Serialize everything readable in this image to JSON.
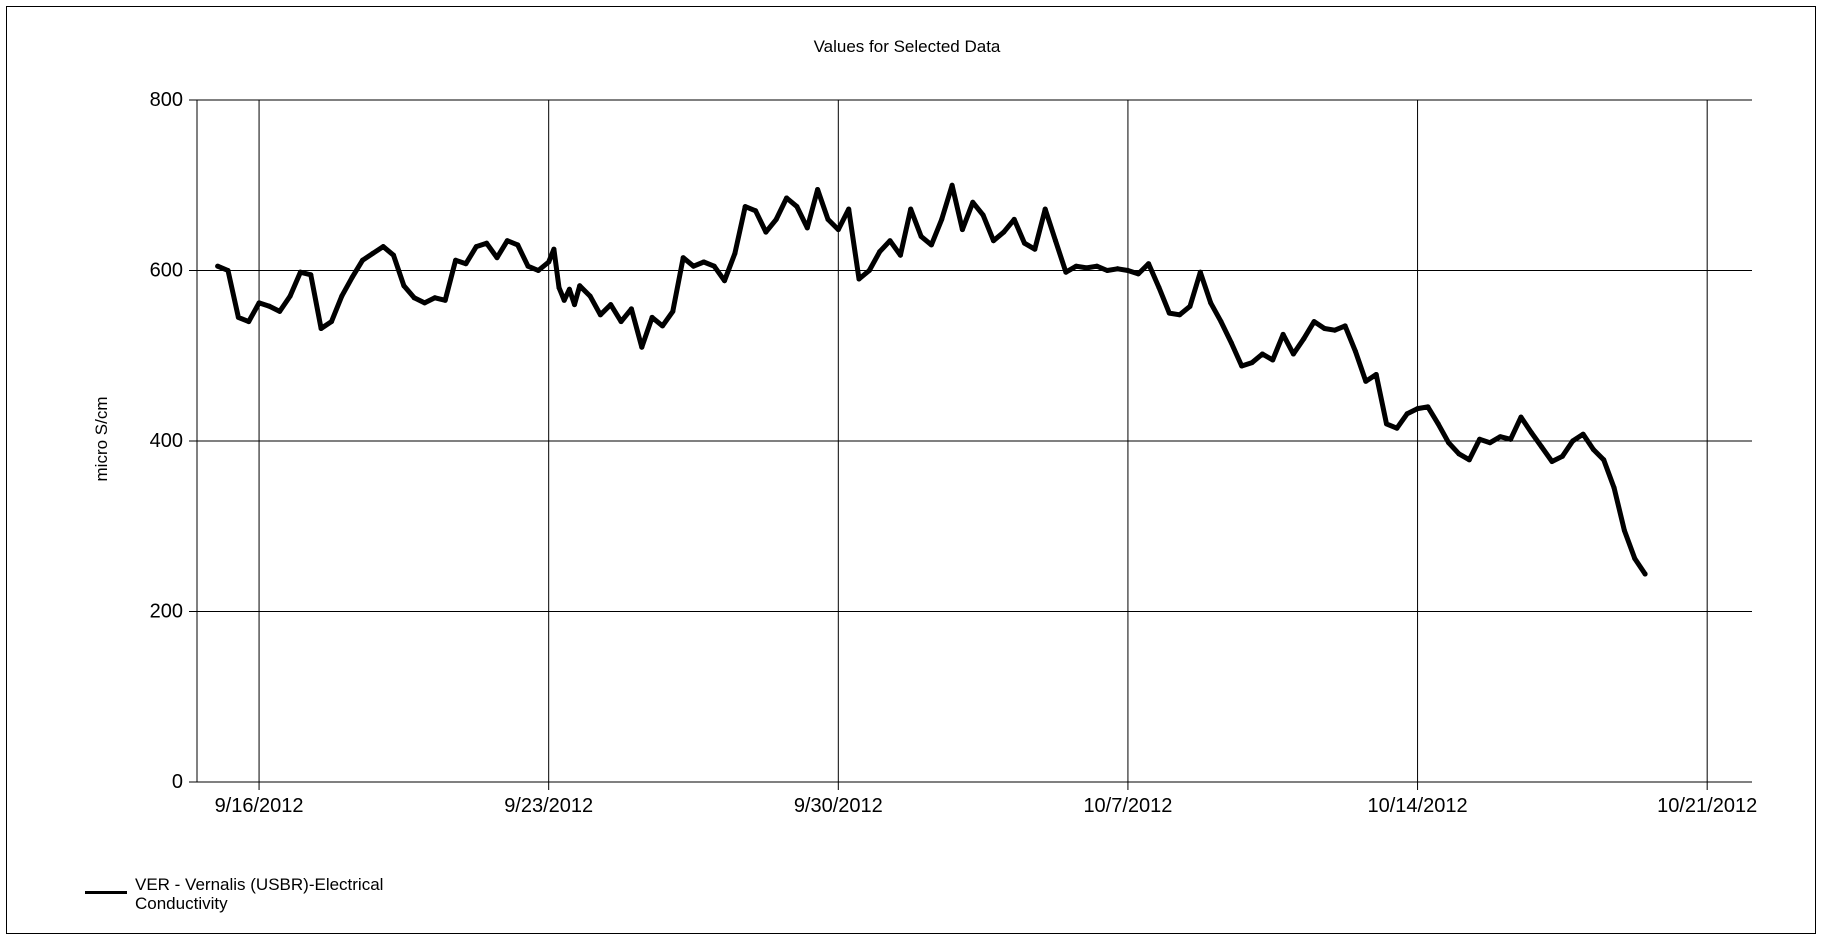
{
  "chart_data": {
    "type": "line",
    "title": "Values for Selected Data",
    "ylabel": "micro S/cm",
    "xlabel": "",
    "ylim": [
      0,
      800
    ],
    "yticks": [
      0,
      200,
      400,
      600,
      800
    ],
    "xlim": [
      "2012-09-14T12:00",
      "2012-10-22T02:00"
    ],
    "xticks": [
      {
        "date": "2012-09-16",
        "label": "9/16/2012"
      },
      {
        "date": "2012-09-23",
        "label": "9/23/2012"
      },
      {
        "date": "2012-09-30",
        "label": "9/30/2012"
      },
      {
        "date": "2012-10-07",
        "label": "10/7/2012"
      },
      {
        "date": "2012-10-14",
        "label": "10/14/2012"
      },
      {
        "date": "2012-10-21",
        "label": "10/21/2012"
      }
    ],
    "grid": true,
    "legend_position": "bottom-left",
    "series": [
      {
        "name": "VER - Vernalis (USBR)-Electrical Conductivity",
        "color": "#000000",
        "points": [
          [
            "2012-09-15T00:00",
            605
          ],
          [
            "2012-09-15T06:00",
            600
          ],
          [
            "2012-09-15T12:00",
            545
          ],
          [
            "2012-09-15T18:00",
            540
          ],
          [
            "2012-09-16T00:00",
            562
          ],
          [
            "2012-09-16T06:00",
            558
          ],
          [
            "2012-09-16T12:00",
            552
          ],
          [
            "2012-09-16T18:00",
            570
          ],
          [
            "2012-09-17T00:00",
            598
          ],
          [
            "2012-09-17T06:00",
            595
          ],
          [
            "2012-09-17T12:00",
            532
          ],
          [
            "2012-09-17T18:00",
            540
          ],
          [
            "2012-09-18T00:00",
            570
          ],
          [
            "2012-09-18T06:00",
            592
          ],
          [
            "2012-09-18T12:00",
            612
          ],
          [
            "2012-09-18T18:00",
            620
          ],
          [
            "2012-09-19T00:00",
            628
          ],
          [
            "2012-09-19T06:00",
            618
          ],
          [
            "2012-09-19T12:00",
            582
          ],
          [
            "2012-09-19T18:00",
            568
          ],
          [
            "2012-09-20T00:00",
            562
          ],
          [
            "2012-09-20T06:00",
            568
          ],
          [
            "2012-09-20T12:00",
            565
          ],
          [
            "2012-09-20T18:00",
            612
          ],
          [
            "2012-09-21T00:00",
            608
          ],
          [
            "2012-09-21T06:00",
            628
          ],
          [
            "2012-09-21T12:00",
            632
          ],
          [
            "2012-09-21T18:00",
            615
          ],
          [
            "2012-09-22T00:00",
            635
          ],
          [
            "2012-09-22T06:00",
            630
          ],
          [
            "2012-09-22T12:00",
            605
          ],
          [
            "2012-09-22T18:00",
            600
          ],
          [
            "2012-09-23T00:00",
            610
          ],
          [
            "2012-09-23T03:00",
            625
          ],
          [
            "2012-09-23T06:00",
            580
          ],
          [
            "2012-09-23T09:00",
            565
          ],
          [
            "2012-09-23T12:00",
            578
          ],
          [
            "2012-09-23T15:00",
            560
          ],
          [
            "2012-09-23T18:00",
            582
          ],
          [
            "2012-09-24T00:00",
            570
          ],
          [
            "2012-09-24T06:00",
            548
          ],
          [
            "2012-09-24T12:00",
            560
          ],
          [
            "2012-09-24T18:00",
            540
          ],
          [
            "2012-09-25T00:00",
            555
          ],
          [
            "2012-09-25T06:00",
            510
          ],
          [
            "2012-09-25T12:00",
            545
          ],
          [
            "2012-09-25T18:00",
            535
          ],
          [
            "2012-09-26T00:00",
            552
          ],
          [
            "2012-09-26T06:00",
            615
          ],
          [
            "2012-09-26T12:00",
            605
          ],
          [
            "2012-09-26T18:00",
            610
          ],
          [
            "2012-09-27T00:00",
            605
          ],
          [
            "2012-09-27T06:00",
            588
          ],
          [
            "2012-09-27T12:00",
            620
          ],
          [
            "2012-09-27T18:00",
            675
          ],
          [
            "2012-09-28T00:00",
            670
          ],
          [
            "2012-09-28T06:00",
            645
          ],
          [
            "2012-09-28T12:00",
            660
          ],
          [
            "2012-09-28T18:00",
            685
          ],
          [
            "2012-09-29T00:00",
            675
          ],
          [
            "2012-09-29T06:00",
            650
          ],
          [
            "2012-09-29T12:00",
            695
          ],
          [
            "2012-09-29T18:00",
            660
          ],
          [
            "2012-09-30T00:00",
            648
          ],
          [
            "2012-09-30T06:00",
            672
          ],
          [
            "2012-09-30T12:00",
            590
          ],
          [
            "2012-09-30T18:00",
            600
          ],
          [
            "2012-10-01T00:00",
            622
          ],
          [
            "2012-10-01T06:00",
            635
          ],
          [
            "2012-10-01T12:00",
            618
          ],
          [
            "2012-10-01T18:00",
            672
          ],
          [
            "2012-10-02T00:00",
            640
          ],
          [
            "2012-10-02T06:00",
            630
          ],
          [
            "2012-10-02T12:00",
            660
          ],
          [
            "2012-10-02T18:00",
            700
          ],
          [
            "2012-10-03T00:00",
            648
          ],
          [
            "2012-10-03T06:00",
            680
          ],
          [
            "2012-10-03T12:00",
            665
          ],
          [
            "2012-10-03T18:00",
            635
          ],
          [
            "2012-10-04T00:00",
            645
          ],
          [
            "2012-10-04T06:00",
            660
          ],
          [
            "2012-10-04T12:00",
            632
          ],
          [
            "2012-10-04T18:00",
            625
          ],
          [
            "2012-10-05T00:00",
            672
          ],
          [
            "2012-10-05T06:00",
            635
          ],
          [
            "2012-10-05T12:00",
            598
          ],
          [
            "2012-10-05T18:00",
            605
          ],
          [
            "2012-10-06T00:00",
            603
          ],
          [
            "2012-10-06T06:00",
            605
          ],
          [
            "2012-10-06T12:00",
            600
          ],
          [
            "2012-10-06T18:00",
            602
          ],
          [
            "2012-10-07T00:00",
            600
          ],
          [
            "2012-10-07T06:00",
            596
          ],
          [
            "2012-10-07T12:00",
            608
          ],
          [
            "2012-10-07T18:00",
            580
          ],
          [
            "2012-10-08T00:00",
            550
          ],
          [
            "2012-10-08T06:00",
            548
          ],
          [
            "2012-10-08T12:00",
            558
          ],
          [
            "2012-10-08T18:00",
            598
          ],
          [
            "2012-10-09T00:00",
            562
          ],
          [
            "2012-10-09T06:00",
            540
          ],
          [
            "2012-10-09T12:00",
            515
          ],
          [
            "2012-10-09T18:00",
            488
          ],
          [
            "2012-10-10T00:00",
            492
          ],
          [
            "2012-10-10T06:00",
            502
          ],
          [
            "2012-10-10T12:00",
            495
          ],
          [
            "2012-10-10T18:00",
            525
          ],
          [
            "2012-10-11T00:00",
            502
          ],
          [
            "2012-10-11T06:00",
            520
          ],
          [
            "2012-10-11T12:00",
            540
          ],
          [
            "2012-10-11T18:00",
            532
          ],
          [
            "2012-10-12T00:00",
            530
          ],
          [
            "2012-10-12T06:00",
            535
          ],
          [
            "2012-10-12T12:00",
            505
          ],
          [
            "2012-10-12T18:00",
            470
          ],
          [
            "2012-10-13T00:00",
            478
          ],
          [
            "2012-10-13T06:00",
            420
          ],
          [
            "2012-10-13T12:00",
            415
          ],
          [
            "2012-10-13T18:00",
            432
          ],
          [
            "2012-10-14T00:00",
            438
          ],
          [
            "2012-10-14T06:00",
            440
          ],
          [
            "2012-10-14T12:00",
            420
          ],
          [
            "2012-10-14T18:00",
            398
          ],
          [
            "2012-10-15T00:00",
            385
          ],
          [
            "2012-10-15T06:00",
            378
          ],
          [
            "2012-10-15T12:00",
            402
          ],
          [
            "2012-10-15T18:00",
            398
          ],
          [
            "2012-10-16T00:00",
            405
          ],
          [
            "2012-10-16T06:00",
            402
          ],
          [
            "2012-10-16T12:00",
            428
          ],
          [
            "2012-10-16T18:00",
            410
          ],
          [
            "2012-10-17T00:00",
            393
          ],
          [
            "2012-10-17T06:00",
            376
          ],
          [
            "2012-10-17T12:00",
            382
          ],
          [
            "2012-10-17T18:00",
            400
          ],
          [
            "2012-10-18T00:00",
            408
          ],
          [
            "2012-10-18T06:00",
            390
          ],
          [
            "2012-10-18T12:00",
            378
          ],
          [
            "2012-10-18T18:00",
            345
          ],
          [
            "2012-10-19T00:00",
            295
          ],
          [
            "2012-10-19T06:00",
            262
          ],
          [
            "2012-10-19T12:00",
            244
          ]
        ]
      }
    ]
  }
}
